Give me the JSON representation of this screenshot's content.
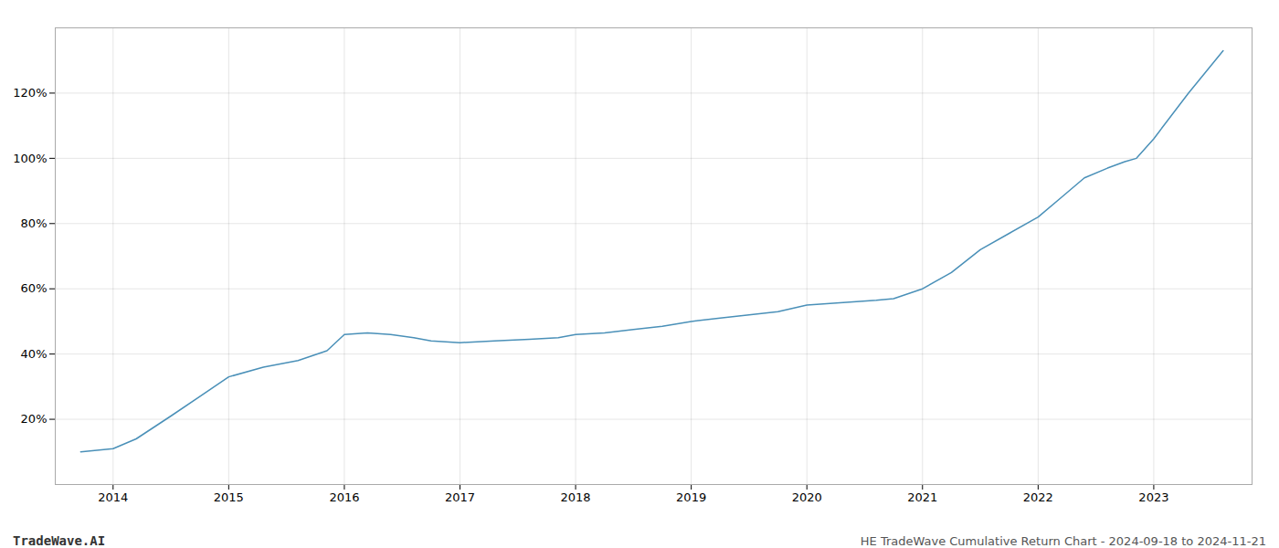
{
  "chart_data": {
    "type": "line",
    "title": "HE TradeWave Cumulative Return Chart - 2024-09-18 to 2024-11-21",
    "annotations": [
      "TradeWave.AI"
    ],
    "color": "#4a90b8",
    "grid": true,
    "x": [
      2013.72,
      2014.0,
      2014.2,
      2014.5,
      2014.75,
      2015.0,
      2015.3,
      2015.6,
      2015.85,
      2016.0,
      2016.2,
      2016.4,
      2016.6,
      2016.75,
      2017.0,
      2017.3,
      2017.6,
      2017.85,
      2018.0,
      2018.25,
      2018.5,
      2018.75,
      2019.0,
      2019.25,
      2019.5,
      2019.75,
      2020.0,
      2020.2,
      2020.4,
      2020.6,
      2020.75,
      2021.0,
      2021.25,
      2021.5,
      2021.75,
      2022.0,
      2022.2,
      2022.4,
      2022.6,
      2022.75,
      2022.85,
      2023.0,
      2023.3,
      2023.6
    ],
    "values": [
      10,
      11,
      14,
      21,
      27,
      33,
      36,
      38,
      41,
      46,
      46.5,
      46,
      45,
      44,
      43.5,
      44,
      44.5,
      45,
      46,
      46.5,
      47.5,
      48.5,
      50,
      51,
      52,
      53,
      55,
      55.5,
      56,
      56.5,
      57,
      60,
      65,
      72,
      77,
      82,
      88,
      94,
      97,
      99,
      100,
      106,
      120,
      133
    ],
    "xlim": [
      2013.5,
      2023.85
    ],
    "xticks": [
      2014,
      2015,
      2016,
      2017,
      2018,
      2019,
      2020,
      2021,
      2022,
      2023
    ],
    "ylim": [
      0,
      140
    ],
    "yticks": [
      {
        "value": 20,
        "label": "20%"
      },
      {
        "value": 40,
        "label": "40%"
      },
      {
        "value": 60,
        "label": "60%"
      },
      {
        "value": 80,
        "label": "80%"
      },
      {
        "value": 100,
        "label": "100%"
      },
      {
        "value": 120,
        "label": "120%"
      }
    ]
  }
}
